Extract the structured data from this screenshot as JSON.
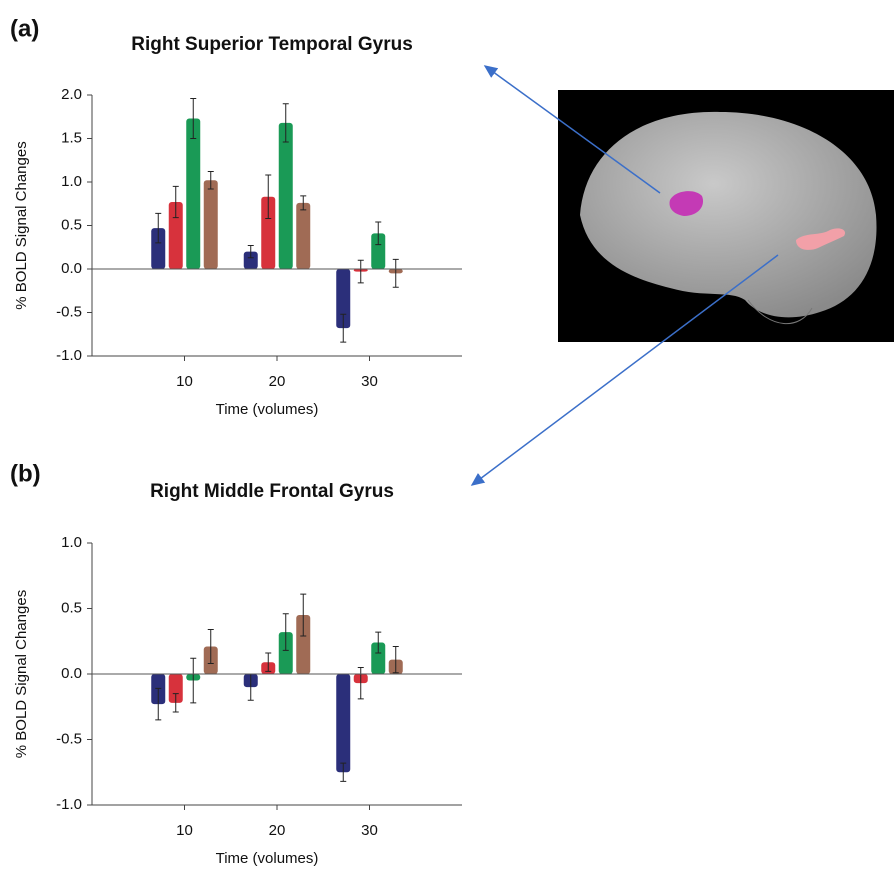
{
  "chart_data": [
    {
      "type": "bar",
      "panel": "(a)",
      "title": "Right Superior Temporal Gyrus",
      "x_label": "Time (volumes)",
      "y_label": "% BOLD Signal Changes",
      "x": [
        10,
        20,
        30
      ],
      "xlim": [
        0,
        40
      ],
      "xticks": [
        10,
        20,
        30
      ],
      "ylim": [
        -1,
        2
      ],
      "yticks": [
        {
          "value": -1,
          "label": "-1.0"
        },
        -0.5,
        {
          "value": 0,
          "label": "0.0"
        },
        0.5,
        {
          "value": 1,
          "label": "1.0"
        },
        1.5,
        {
          "value": 2,
          "label": "2.0"
        }
      ],
      "series": [
        {
          "color": "#2b2f7a",
          "values": [
            0.47,
            0.2,
            -0.68
          ],
          "errors": [
            0.17,
            0.07,
            0.16
          ]
        },
        {
          "color": "#d7323c",
          "values": [
            0.77,
            0.83,
            -0.03
          ],
          "errors": [
            0.18,
            0.25,
            0.13
          ]
        },
        {
          "color": "#1a9a56",
          "values": [
            1.73,
            1.68,
            0.41
          ],
          "errors": [
            0.23,
            0.22,
            0.13
          ]
        },
        {
          "color": "#a06b55",
          "values": [
            1.02,
            0.76,
            -0.05
          ],
          "errors": [
            0.1,
            0.08,
            0.16
          ]
        }
      ]
    },
    {
      "type": "bar",
      "panel": "(b)",
      "title": "Right Middle Frontal Gyrus",
      "x_label": "Time (volumes)",
      "y_label": "% BOLD Signal Changes",
      "x": [
        10,
        20,
        30
      ],
      "xlim": [
        0,
        40
      ],
      "xticks": [
        10,
        20,
        30
      ],
      "ylim": [
        -1,
        1
      ],
      "yticks": [
        {
          "value": -1,
          "label": "-1.0"
        },
        -0.5,
        {
          "value": 0,
          "label": "0.0"
        },
        0.5,
        {
          "value": 1,
          "label": "1.0"
        }
      ],
      "series": [
        {
          "color": "#2b2f7a",
          "values": [
            -0.23,
            -0.1,
            -0.75
          ],
          "errors": [
            0.12,
            0.1,
            0.07
          ]
        },
        {
          "color": "#d7323c",
          "values": [
            -0.22,
            0.09,
            -0.07
          ],
          "errors": [
            0.07,
            0.07,
            0.12
          ]
        },
        {
          "color": "#1a9a56",
          "values": [
            -0.05,
            0.32,
            0.24
          ],
          "errors": [
            0.17,
            0.14,
            0.08
          ]
        },
        {
          "color": "#a06b55",
          "values": [
            0.21,
            0.45,
            0.11
          ],
          "errors": [
            0.13,
            0.16,
            0.1
          ]
        }
      ]
    }
  ]
}
